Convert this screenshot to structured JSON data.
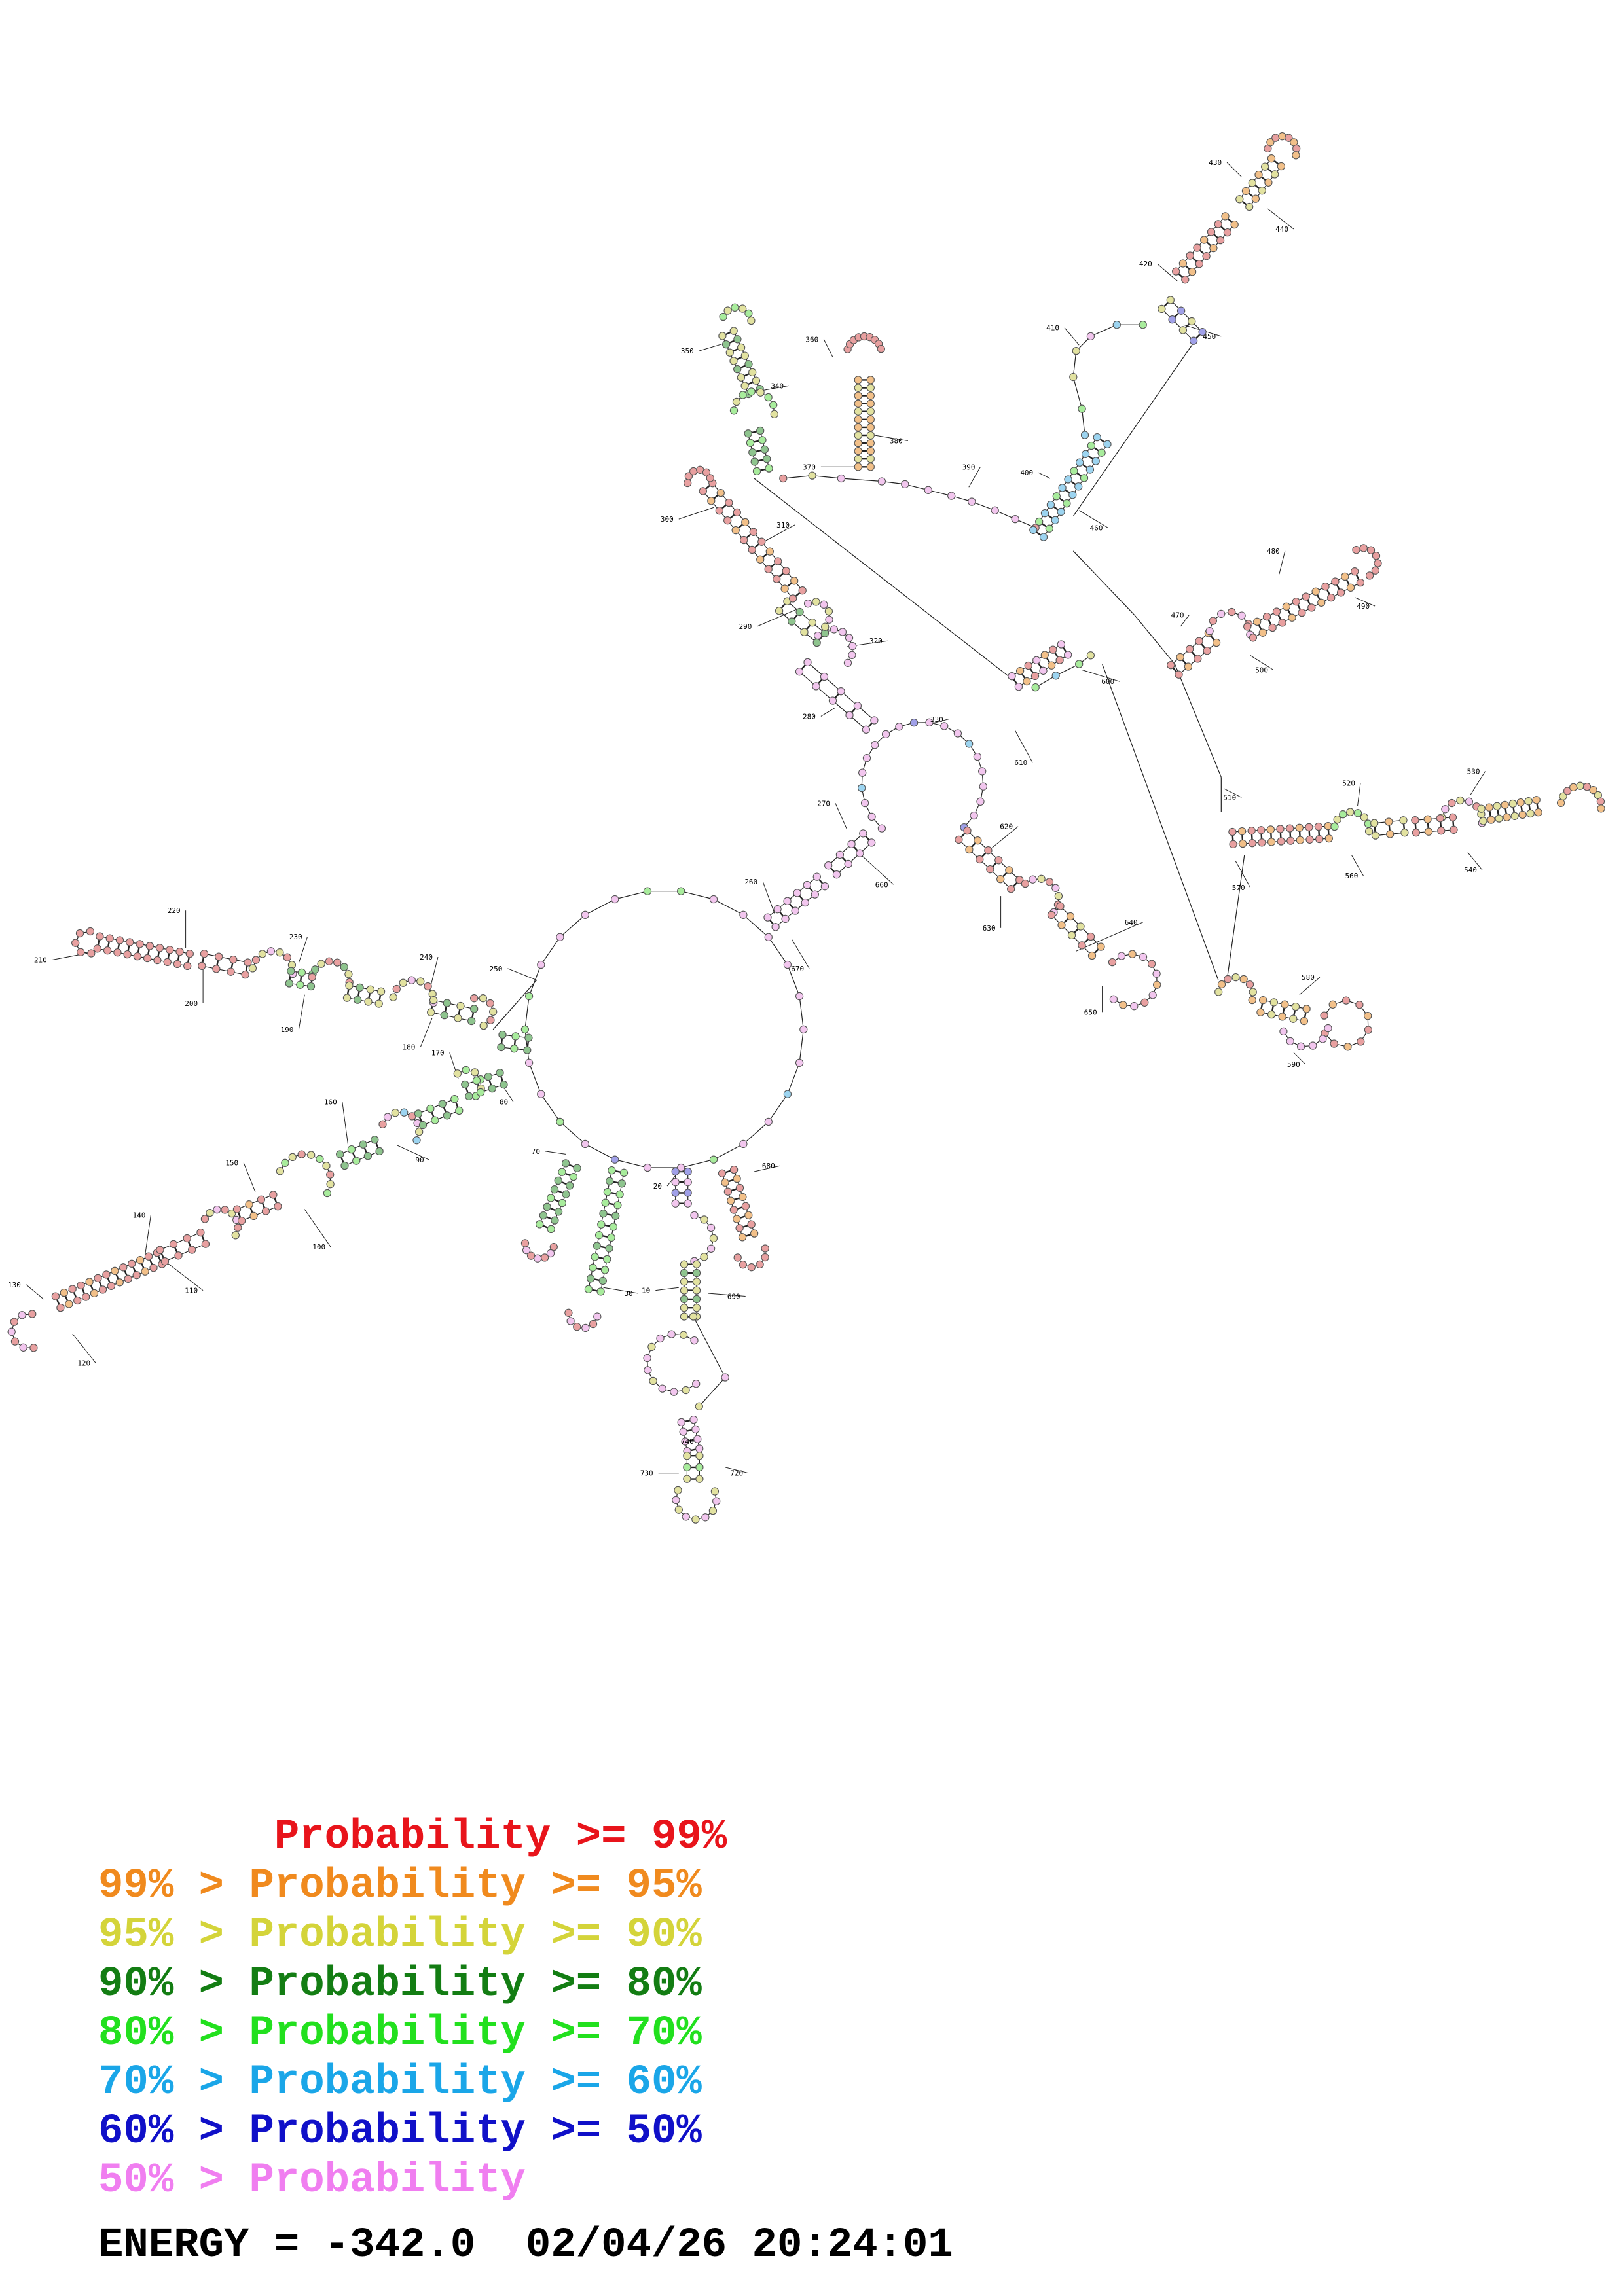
{
  "legend": [
    {
      "text": "       Probability >= 99%",
      "color": "#e8141b"
    },
    {
      "text": "99% > Probability >= 95%",
      "color": "#f08a1e"
    },
    {
      "text": "95% > Probability >= 90%",
      "color": "#d4d43a"
    },
    {
      "text": "90% > Probability >= 80%",
      "color": "#137d13"
    },
    {
      "text": "80% > Probability >= 70%",
      "color": "#22e01e"
    },
    {
      "text": "70% > Probability >= 60%",
      "color": "#1aa6e8"
    },
    {
      "text": "60% > Probability >= 50%",
      "color": "#1010c8"
    },
    {
      "text": "50% > Probability",
      "color": "#f07ef0"
    }
  ],
  "footer": {
    "energy": "ENERGY = -342.0",
    "timestamp": "02/04/26 20:24:01"
  },
  "structure": {
    "position_labels": [
      "10",
      "20",
      "30",
      "70",
      "80",
      "90",
      "100",
      "110",
      "120",
      "130",
      "140",
      "150",
      "160",
      "170",
      "180",
      "190",
      "200",
      "210",
      "220",
      "230",
      "240",
      "250",
      "260",
      "270",
      "280",
      "290",
      "300",
      "310",
      "320",
      "330",
      "340",
      "350",
      "360",
      "370",
      "380",
      "390",
      "400",
      "410",
      "420",
      "430",
      "440",
      "450",
      "460",
      "470",
      "480",
      "490",
      "500",
      "510",
      "520",
      "530",
      "540",
      "560",
      "570",
      "580",
      "590",
      "600",
      "610",
      "620",
      "630",
      "640",
      "650",
      "660",
      "670",
      "680",
      "690",
      "720",
      "730",
      "740",
      "750"
    ]
  }
}
